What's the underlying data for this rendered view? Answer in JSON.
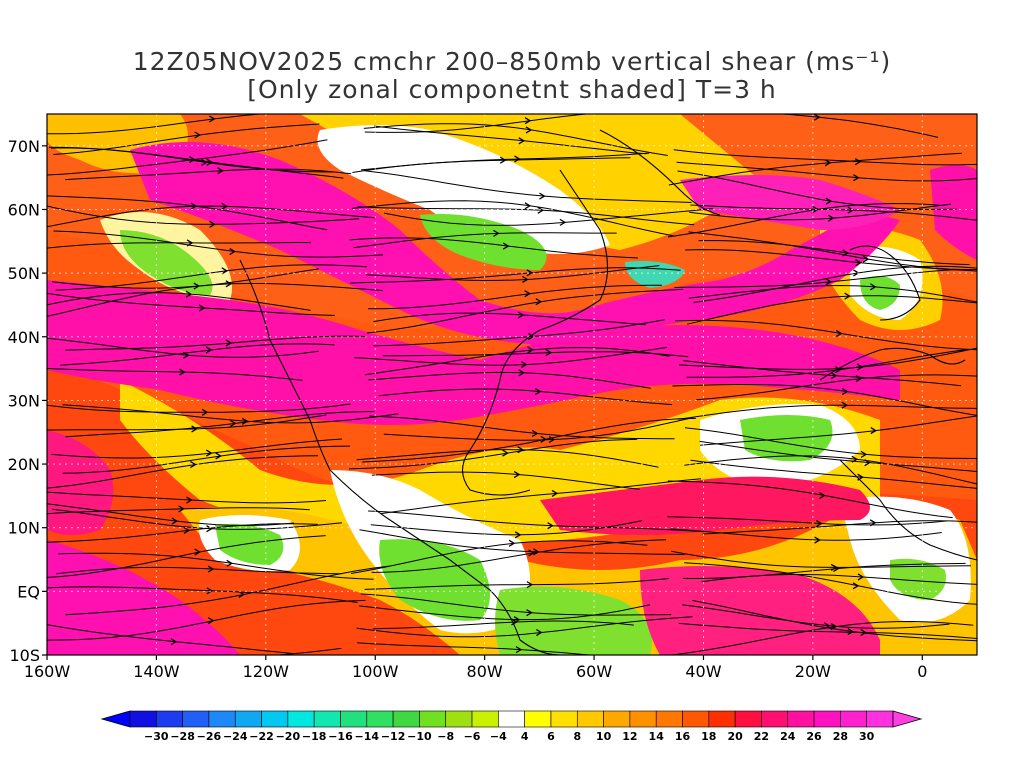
{
  "title": {
    "line1": "12Z05NOV2025 cmchr 200–850mb vertical shear (ms⁻¹)",
    "line2": "[Only zonal componetnt shaded] T=3 h"
  },
  "map": {
    "lon_range": [
      -160,
      10
    ],
    "lat_range": [
      -10,
      75
    ],
    "lat_labels": [
      "70N",
      "60N",
      "50N",
      "40N",
      "30N",
      "20N",
      "10N",
      "EQ",
      "10S"
    ],
    "lat_values": [
      70,
      60,
      50,
      40,
      30,
      20,
      10,
      0,
      -10
    ],
    "lon_labels": [
      "160W",
      "140W",
      "120W",
      "100W",
      "80W",
      "60W",
      "40W",
      "20W",
      "0"
    ],
    "lon_values": [
      -160,
      -140,
      -120,
      -100,
      -80,
      -60,
      -40,
      -20,
      0
    ]
  },
  "colorbar": {
    "labels": [
      "−30",
      "−28",
      "−26",
      "−24",
      "−22",
      "−20",
      "−18",
      "−16",
      "−14",
      "−12",
      "−10",
      "−8",
      "−6",
      "−4",
      "4",
      "6",
      "8",
      "10",
      "12",
      "14",
      "16",
      "18",
      "20",
      "22",
      "24",
      "26",
      "28",
      "30"
    ],
    "colors": [
      "#1010e0",
      "#1c3cf0",
      "#2060f8",
      "#1e88f8",
      "#10a8f0",
      "#00c8f0",
      "#00e8e0",
      "#10e8b0",
      "#20e080",
      "#30e060",
      "#40d840",
      "#70e020",
      "#a0e010",
      "#c8f000",
      "#ffffff",
      "#ffff00",
      "#ffe000",
      "#ffc800",
      "#ffa800",
      "#ff9000",
      "#ff7800",
      "#ff5800",
      "#ff3000",
      "#ff1040",
      "#ff1070",
      "#ff10a0",
      "#ff10c0",
      "#ff20d0",
      "#ff30e0"
    ],
    "low_arrow_color": "#0000ff",
    "high_arrow_color": "#ff40e0"
  }
}
